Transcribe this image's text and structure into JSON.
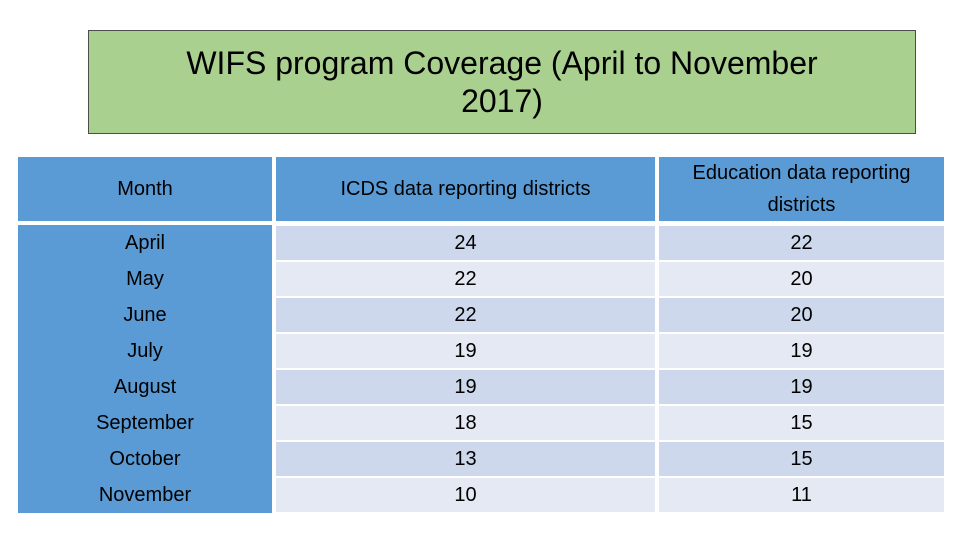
{
  "title": "WIFS program Coverage (April  to November\n2017)",
  "table": {
    "headers": {
      "month": "Month",
      "icds": "ICDS data reporting districts",
      "education": "Education data reporting districts"
    },
    "rows": [
      {
        "month": "April",
        "icds": "24",
        "education": "22"
      },
      {
        "month": "May",
        "icds": "22",
        "education": "20"
      },
      {
        "month": "June",
        "icds": "22",
        "education": "20"
      },
      {
        "month": "July",
        "icds": "19",
        "education": "19"
      },
      {
        "month": "August",
        "icds": "19",
        "education": "19"
      },
      {
        "month": "September",
        "icds": "18",
        "education": "15"
      },
      {
        "month": "October",
        "icds": "13",
        "education": "15"
      },
      {
        "month": "November",
        "icds": "10",
        "education": "11"
      }
    ]
  },
  "colors": {
    "title_background": "#a9d08e",
    "header_background": "#5b9bd5",
    "row_background_odd": "#cdd8ec",
    "row_background_even": "#e4e9f4"
  }
}
